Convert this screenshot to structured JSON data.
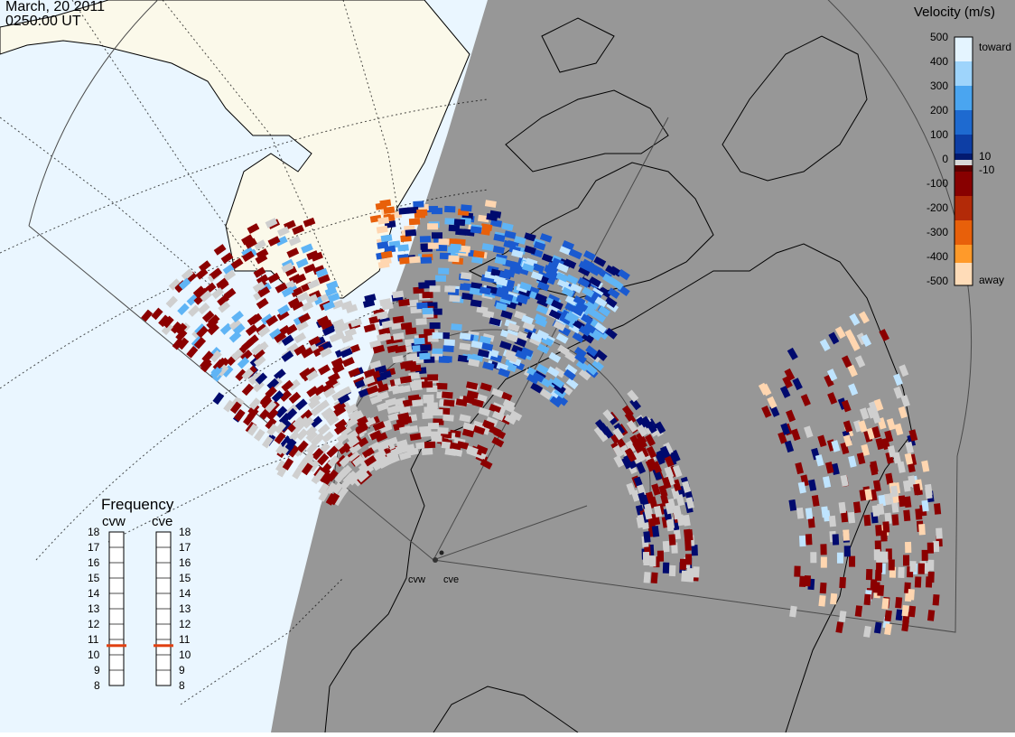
{
  "header": {
    "date": "March, 20 2011",
    "time": "0250:00 UT"
  },
  "colorbar": {
    "title": "Velocity (m/s)",
    "ticks": [
      "500",
      "400",
      "300",
      "200",
      "100",
      "10",
      "0",
      "-10",
      "-100",
      "-200",
      "-300",
      "-400",
      "-500"
    ],
    "top_label": "toward",
    "bottom_label": "away",
    "colors": [
      "#d6eeff",
      "#a6d8ff",
      "#5fb4f5",
      "#2a86e0",
      "#1352b8",
      "#0a2a8c",
      "#000a55",
      "#cfcfcf",
      "#5c0000",
      "#8b0000",
      "#c0300a",
      "#ff7f00",
      "#ffd8b0"
    ]
  },
  "frequency": {
    "title": "Frequency",
    "radars": [
      {
        "name": "cvw",
        "value_mhz": 10.6
      },
      {
        "name": "cve",
        "value_mhz": 10.6
      }
    ],
    "scale": [
      "18",
      "17",
      "16",
      "15",
      "14",
      "13",
      "12",
      "11",
      "10",
      "9",
      "8"
    ]
  },
  "sites": [
    {
      "name": "cvw"
    },
    {
      "name": "cve"
    }
  ]
}
